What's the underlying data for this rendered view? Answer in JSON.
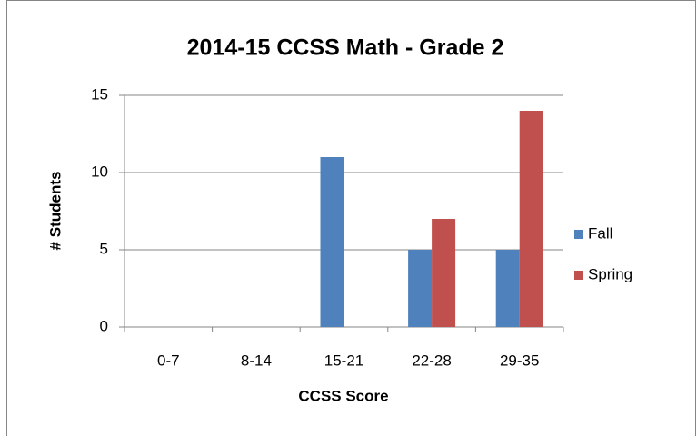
{
  "chart_data": {
    "type": "bar",
    "title": "2014-15 CCSS Math - Grade 2",
    "x_label": "CCSS Score",
    "y_label": "# Students",
    "categories": [
      "0-7",
      "8-14",
      "15-21",
      "22-28",
      "29-35"
    ],
    "series": [
      {
        "name": "Fall",
        "color": "#4f81bd",
        "values": [
          0,
          0,
          11,
          5,
          5
        ]
      },
      {
        "name": "Spring",
        "color": "#c0504d",
        "values": [
          0,
          0,
          0,
          7,
          14
        ]
      }
    ],
    "ylim": [
      0,
      15
    ],
    "yticks": [
      0,
      5,
      10,
      15
    ],
    "grid": true,
    "legend": "right"
  }
}
